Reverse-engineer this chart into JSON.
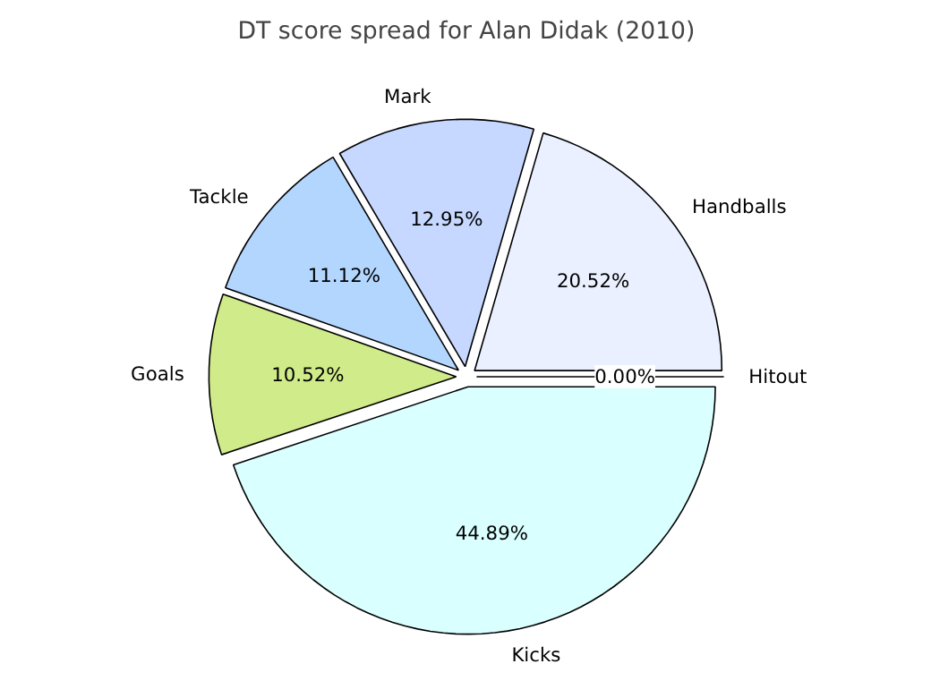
{
  "chart_data": {
    "type": "pie",
    "title": "DT score spread for Alan Didak (2010)",
    "categories": [
      "Handballs",
      "Mark",
      "Tackle",
      "Goals",
      "Kicks",
      "Hitout"
    ],
    "values": [
      20.52,
      12.95,
      11.12,
      10.52,
      44.89,
      0.0
    ],
    "colors": [
      "#eaf0ff",
      "#c6d8ff",
      "#b3d6ff",
      "#d0eb8a",
      "#d9ffff",
      "#ffffff"
    ],
    "value_labels": [
      "20.52%",
      "12.95%",
      "11.12%",
      "10.52%",
      "44.89%",
      "0.00%"
    ]
  }
}
